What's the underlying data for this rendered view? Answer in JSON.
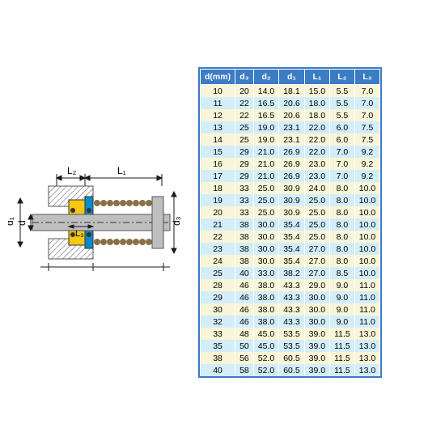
{
  "diagram": {
    "labels": {
      "L2": "L₂",
      "L1": "L₁",
      "L3": "L₃",
      "d1": "d₁",
      "d": "d",
      "d3": "d₃"
    },
    "colors": {
      "shaft": "#bfbfbf",
      "shaft_stroke": "#555",
      "yellow": "#f6c715",
      "blue": "#0a8ccc",
      "brown": "#8b6f47",
      "line": "#1a1a1a",
      "border": "#3b7cc4"
    }
  },
  "table": {
    "columns": [
      "d(mm)",
      "d₃",
      "d₂",
      "d₁",
      "L₁",
      "L₂",
      "L₃"
    ],
    "header_bg": "#3b7cc4",
    "header_color": "#ffffff",
    "row_color_odd": "#f8f5d8",
    "row_color_even": "#d3edf9",
    "font_size": 10.5,
    "rows": [
      [
        10,
        20,
        "14.0",
        "18.1",
        "15.0",
        "5.5",
        "7.0"
      ],
      [
        11,
        22,
        "16.5",
        "20.6",
        "18.0",
        "5.5",
        "7.0"
      ],
      [
        12,
        22,
        "16.5",
        "20.6",
        "18.0",
        "5.5",
        "7.0"
      ],
      [
        13,
        25,
        "19.0",
        "23.1",
        "22.0",
        "6.0",
        "7.5"
      ],
      [
        14,
        25,
        "19.0",
        "23.1",
        "22.0",
        "6.0",
        "7.5"
      ],
      [
        15,
        29,
        "21.0",
        "26.9",
        "22.0",
        "7.0",
        "9.2"
      ],
      [
        16,
        29,
        "21.0",
        "26.9",
        "23.0",
        "7.0",
        "9.2"
      ],
      [
        17,
        29,
        "21.0",
        "26.9",
        "23.0",
        "7.0",
        "9.2"
      ],
      [
        18,
        33,
        "25.0",
        "30.9",
        "24.0",
        "8.0",
        "10.0"
      ],
      [
        19,
        33,
        "25.0",
        "30.9",
        "25.0",
        "8.0",
        "10.0"
      ],
      [
        20,
        33,
        "25.0",
        "30.9",
        "25.0",
        "8.0",
        "10.0"
      ],
      [
        21,
        38,
        "30.0",
        "35.4",
        "25.0",
        "8.0",
        "10.0"
      ],
      [
        22,
        38,
        "30.0",
        "35.4",
        "25.0",
        "8.0",
        "10.0"
      ],
      [
        23,
        38,
        "30.0",
        "35.4",
        "27.0",
        "8.0",
        "10.0"
      ],
      [
        24,
        38,
        "30.0",
        "35.4",
        "27.0",
        "8.0",
        "10.0"
      ],
      [
        25,
        40,
        "33.0",
        "38.2",
        "27.0",
        "8.5",
        "10.0"
      ],
      [
        28,
        46,
        "38.0",
        "43.3",
        "29.0",
        "9.0",
        "11.0"
      ],
      [
        29,
        46,
        "38.0",
        "43.3",
        "30.0",
        "9.0",
        "11.0"
      ],
      [
        30,
        46,
        "38.0",
        "43.3",
        "30.0",
        "9.0",
        "11.0"
      ],
      [
        32,
        46,
        "38.0",
        "43.3",
        "30.0",
        "9.0",
        "11.0"
      ],
      [
        33,
        48,
        "45.0",
        "53.5",
        "39.0",
        "11.5",
        "13.0"
      ],
      [
        35,
        50,
        "45.0",
        "53.5",
        "39.0",
        "11.5",
        "13.0"
      ],
      [
        38,
        56,
        "52.0",
        "60.5",
        "39.0",
        "11.5",
        "13.0"
      ],
      [
        40,
        58,
        "52.0",
        "60.5",
        "39.0",
        "11.5",
        "13.0"
      ]
    ]
  }
}
